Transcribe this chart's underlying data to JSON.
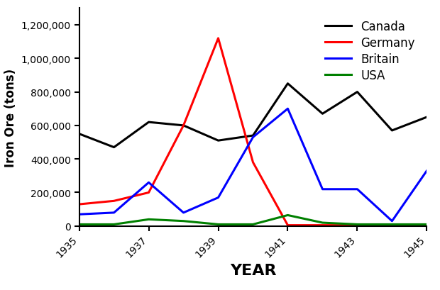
{
  "years": [
    1935,
    1936,
    1937,
    1938,
    1939,
    1940,
    1941,
    1942,
    1943,
    1944,
    1945
  ],
  "canada": [
    550000,
    470000,
    620000,
    600000,
    510000,
    540000,
    850000,
    670000,
    800000,
    570000,
    650000
  ],
  "germany": [
    130000,
    150000,
    200000,
    600000,
    1120000,
    380000,
    5000,
    5000,
    5000,
    5000,
    5000
  ],
  "britain": [
    70000,
    80000,
    260000,
    80000,
    170000,
    530000,
    700000,
    220000,
    220000,
    30000,
    330000
  ],
  "usa": [
    10000,
    10000,
    40000,
    30000,
    10000,
    10000,
    65000,
    20000,
    10000,
    10000,
    10000
  ],
  "canada_color": "#000000",
  "germany_color": "#ff0000",
  "britain_color": "#0000ff",
  "usa_color": "#008000",
  "xlabel": "YEAR",
  "ylabel": "Iron Ore (tons)",
  "ylim": [
    0,
    1300000
  ],
  "yticks": [
    0,
    200000,
    400000,
    600000,
    800000,
    1000000,
    1200000
  ],
  "xticks": [
    1935,
    1937,
    1939,
    1941,
    1943,
    1945
  ],
  "linewidth": 2.2,
  "legend_labels": [
    "Canada",
    "Germany",
    "Britain",
    "USA"
  ],
  "background_color": "#ffffff",
  "xlabel_fontsize": 16,
  "ylabel_fontsize": 12,
  "tick_fontsize": 10,
  "legend_fontsize": 12
}
